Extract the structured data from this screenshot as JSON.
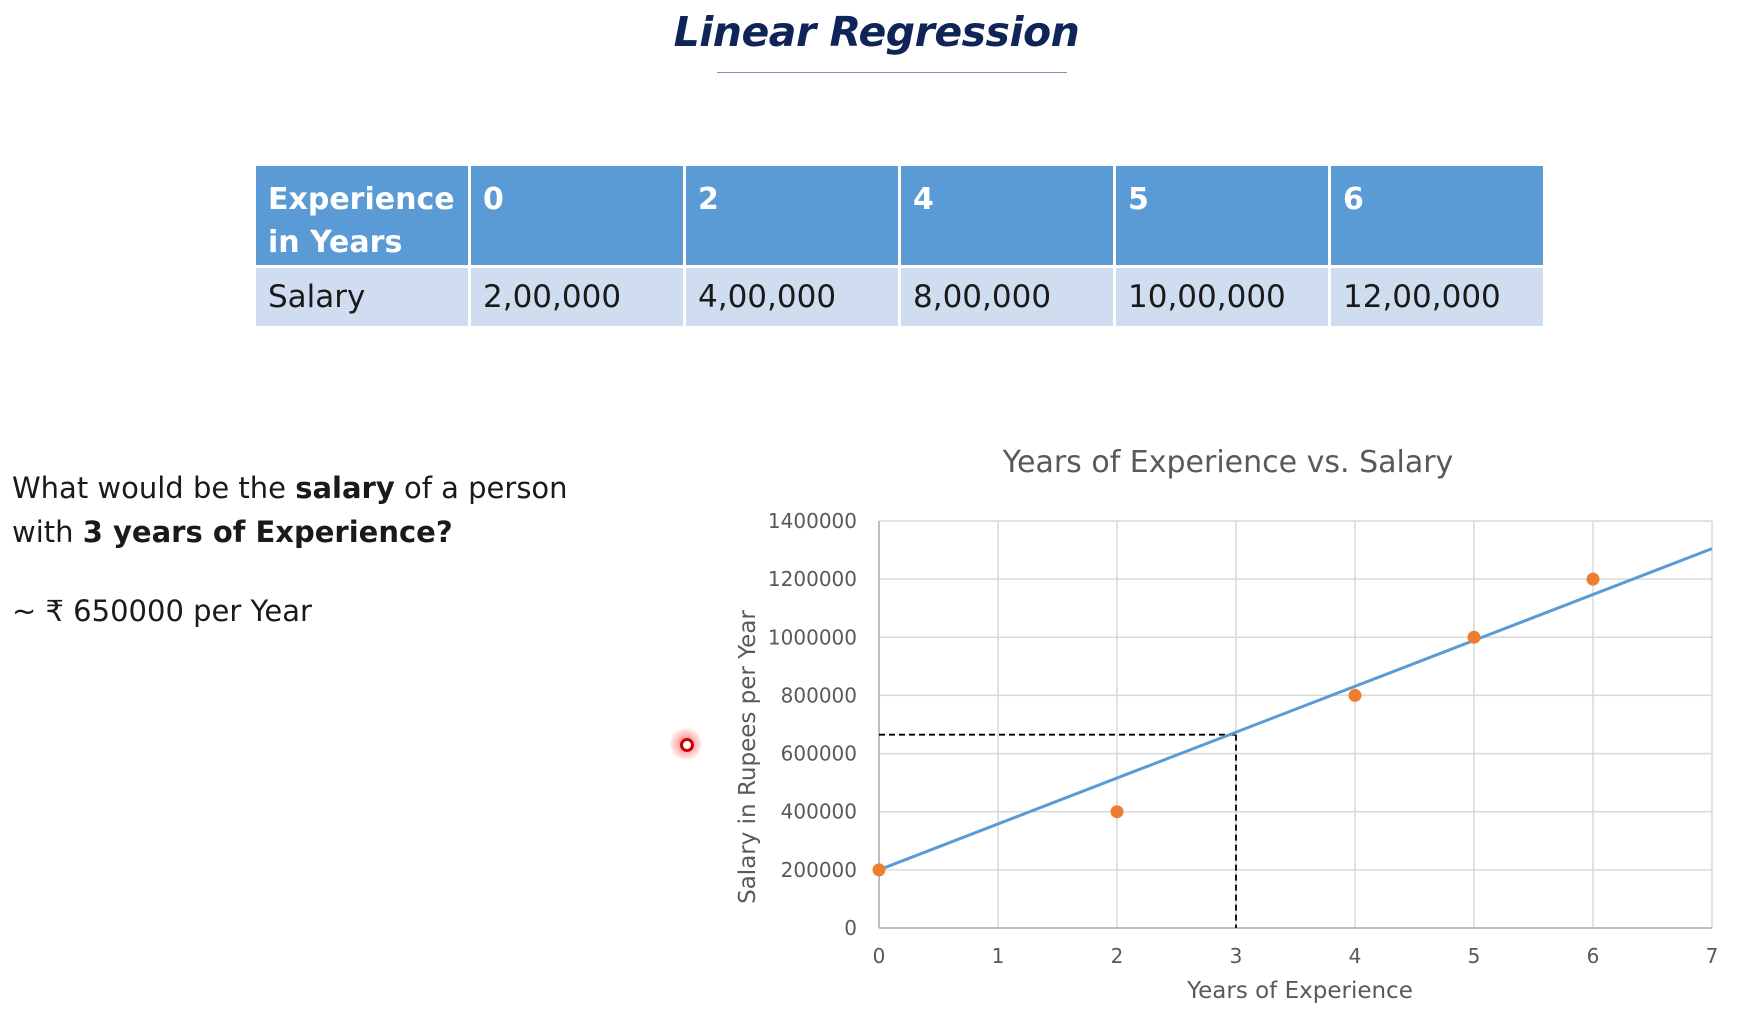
{
  "page": {
    "title": "Linear Regression",
    "question_part1": "What would be the ",
    "question_bold1": "salary",
    "question_part2": " of a person with ",
    "question_bold2": "3 years of Experience?",
    "answer": "~ ₹ 650000 per Year"
  },
  "table": {
    "header_label": "Experience in Years",
    "header_values": [
      "0",
      "2",
      "4",
      "5",
      "6"
    ],
    "row_label": "Salary",
    "row_values": [
      "2,00,000",
      "4,00,000",
      "8,00,000",
      "10,00,000",
      "12,00,000"
    ]
  },
  "chart_data": {
    "type": "scatter",
    "title": "Years of Experience vs. Salary",
    "xlabel": "Years of Experience",
    "ylabel": "Salary in Rupees per Year",
    "xlim": [
      0,
      7
    ],
    "ylim": [
      0,
      1400000
    ],
    "x_ticks": [
      0,
      1,
      2,
      3,
      4,
      5,
      6,
      7
    ],
    "y_ticks": [
      0,
      200000,
      400000,
      600000,
      800000,
      1000000,
      1200000,
      1400000
    ],
    "grid": true,
    "series": [
      {
        "x": [
          0,
          2,
          4,
          5,
          6
        ],
        "y": [
          200000,
          400000,
          800000,
          1000000,
          1200000
        ],
        "color": "#ed7d31"
      }
    ],
    "trendline": {
      "x": [
        0,
        7
      ],
      "y": [
        200000,
        1305000
      ],
      "color": "#5b9bd5"
    },
    "guide": {
      "x": 3,
      "y": 665000,
      "style": "dashed"
    }
  }
}
